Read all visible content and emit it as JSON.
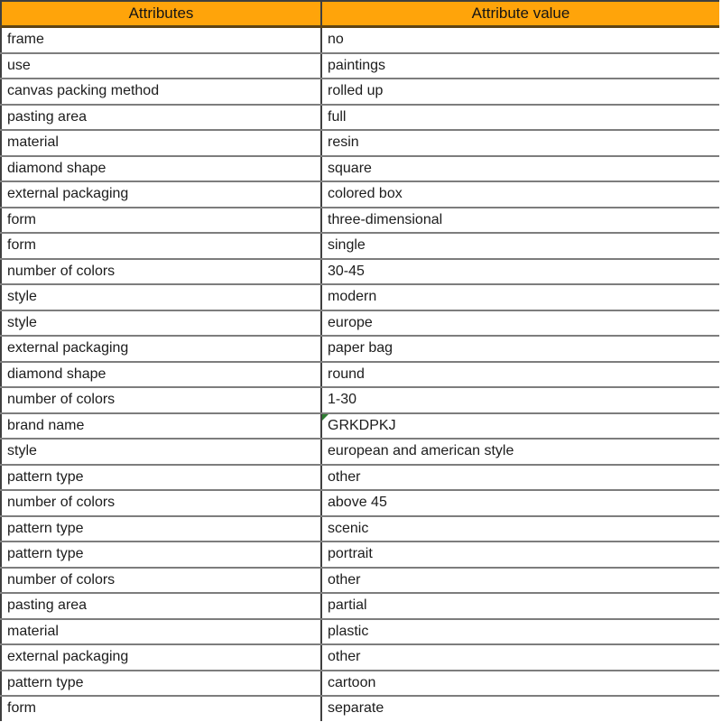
{
  "table": {
    "header": {
      "attribute_label": "Attributes",
      "value_label": "Attribute value"
    },
    "rows": [
      {
        "attribute": "frame",
        "value": "no"
      },
      {
        "attribute": "use",
        "value": "paintings"
      },
      {
        "attribute": "canvas packing method",
        "value": "rolled up"
      },
      {
        "attribute": "pasting area",
        "value": "full"
      },
      {
        "attribute": "material",
        "value": "resin"
      },
      {
        "attribute": "diamond shape",
        "value": "square"
      },
      {
        "attribute": "external packaging",
        "value": "colored box"
      },
      {
        "attribute": "form",
        "value": "three-dimensional"
      },
      {
        "attribute": "form",
        "value": "single"
      },
      {
        "attribute": "number of colors",
        "value": "30-45"
      },
      {
        "attribute": "style",
        "value": "modern"
      },
      {
        "attribute": "style",
        "value": "europe"
      },
      {
        "attribute": "external packaging",
        "value": "paper bag"
      },
      {
        "attribute": "diamond shape",
        "value": "round"
      },
      {
        "attribute": "number of colors",
        "value": "1-30"
      },
      {
        "attribute": "brand name",
        "value": "GRKDPKJ",
        "flag": "green-triangle"
      },
      {
        "attribute": "style",
        "value": "european and american style"
      },
      {
        "attribute": "pattern type",
        "value": "other"
      },
      {
        "attribute": "number of colors",
        "value": "above 45"
      },
      {
        "attribute": "pattern type",
        "value": "scenic"
      },
      {
        "attribute": "pattern type",
        "value": "portrait"
      },
      {
        "attribute": "number of colors",
        "value": "other"
      },
      {
        "attribute": "pasting area",
        "value": "partial"
      },
      {
        "attribute": "material",
        "value": "plastic"
      },
      {
        "attribute": "external packaging",
        "value": "other"
      },
      {
        "attribute": "pattern type",
        "value": "cartoon"
      },
      {
        "attribute": "form",
        "value": "separate"
      }
    ]
  },
  "colors": {
    "header_bg": "#FFA40A",
    "header_text": "#151515",
    "cell_text": "#1c1c1c",
    "grid_line": "#7d7d7d",
    "frame_line": "#3f3f3f",
    "header_bottom_line": "#5d4314",
    "error_flag_green": "#2e7d32"
  }
}
